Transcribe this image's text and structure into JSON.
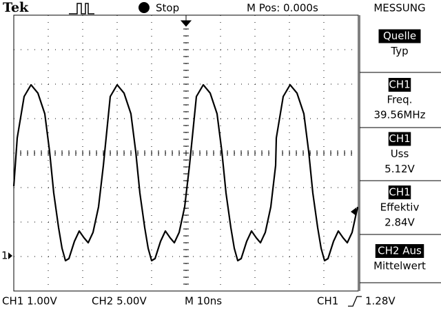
{
  "header": {
    "logo": "Tek",
    "run_state": "Stop",
    "position": "M Pos: 0.000s",
    "menu_title": "MESSUNG"
  },
  "menu": [
    {
      "label": "Quelle",
      "sub": "Typ"
    },
    {
      "label": "CH1",
      "sub": "Freq.",
      "value": "39.56MHz"
    },
    {
      "label": "CH1",
      "sub": "Uss",
      "value": "5.12V"
    },
    {
      "label": "CH1",
      "sub": "Effektiv",
      "value": "2.84V"
    },
    {
      "label": "CH2 Aus",
      "sub": "Mittelwert"
    }
  ],
  "channel_marker": "1",
  "footer": {
    "ch1": "CH1  1.00V",
    "ch2": "CH2  5.00V",
    "timebase": "M  10ns",
    "trigger_source": "CH1",
    "trigger_level": "1.28V"
  }
}
